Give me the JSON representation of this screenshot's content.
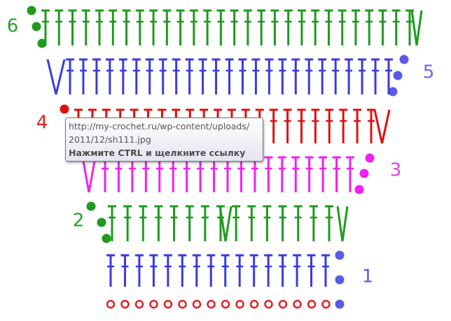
{
  "row_labels": [
    "1",
    "2",
    "3",
    "4",
    "5",
    "6"
  ],
  "tooltip": {
    "lines": [
      "http://my-crochet.ru/wp-content/uploads/",
      "2011/12/sh111.jpg"
    ],
    "hint": "Нажмите CTRL и щелкните ссылку"
  }
}
